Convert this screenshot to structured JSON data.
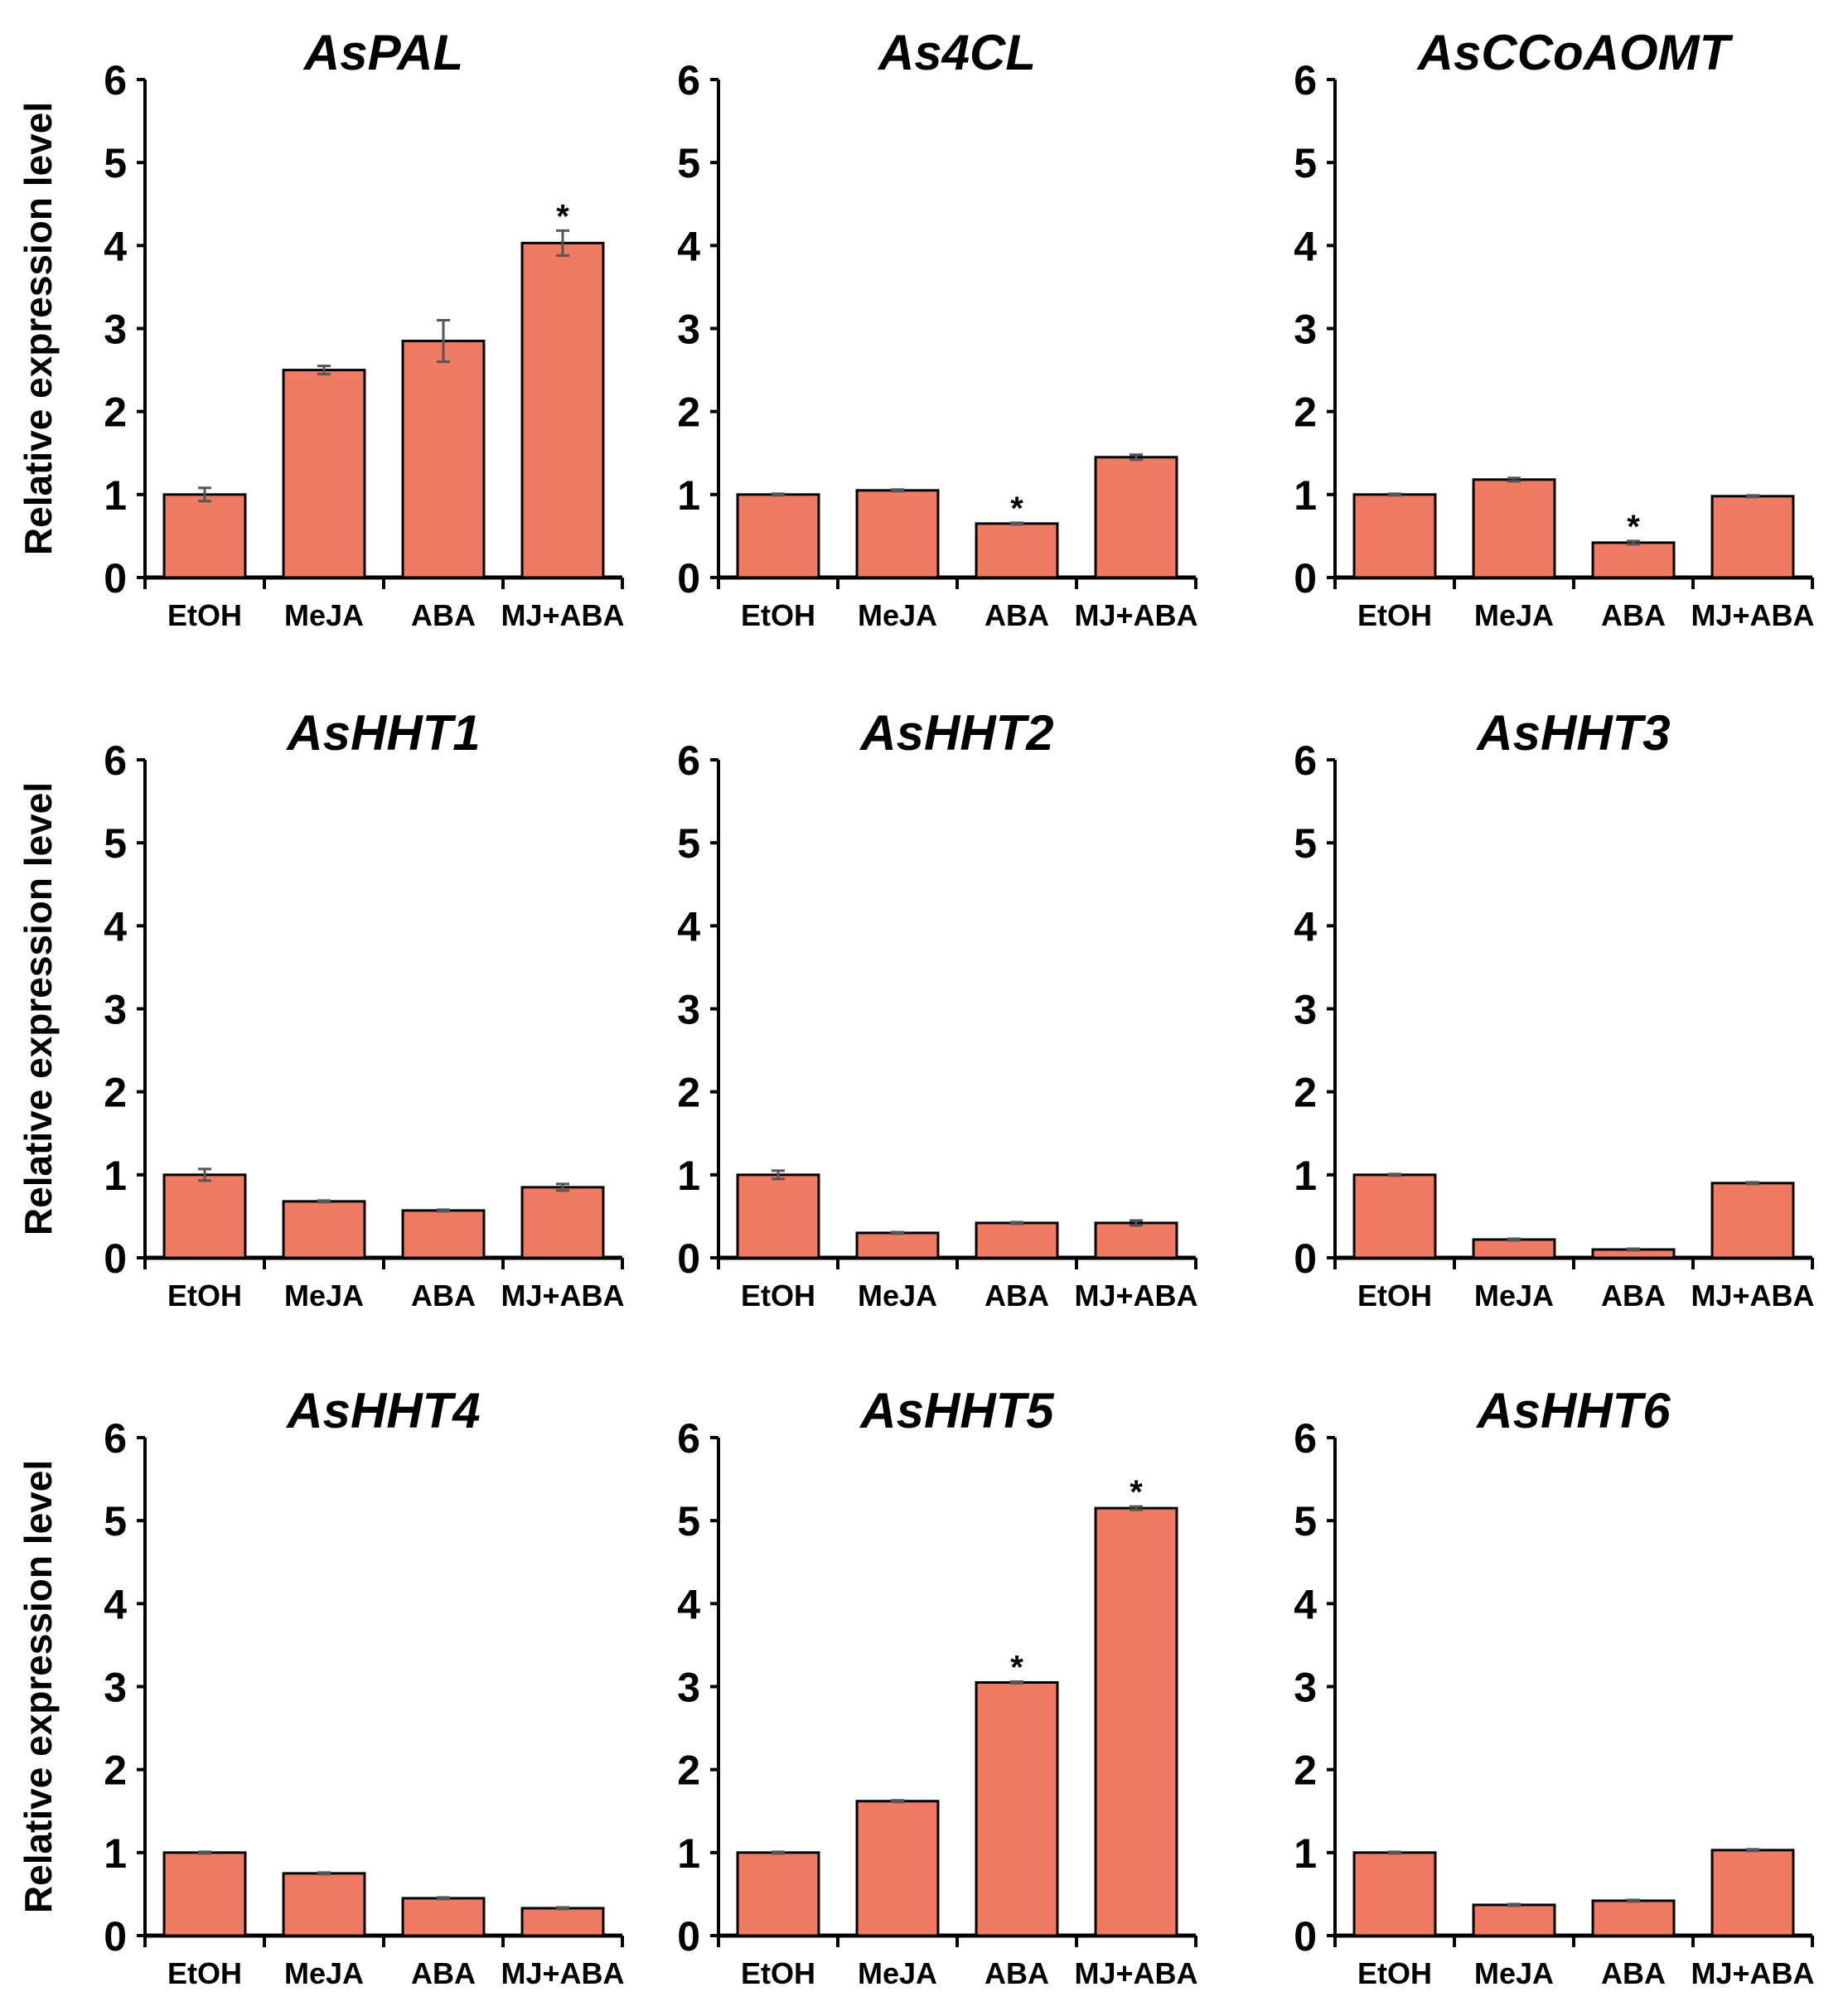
{
  "chart_data": [
    {
      "type": "bar",
      "title": "AsPAL",
      "ylabel": "Relative expression level",
      "categories": [
        "EtOH",
        "MeJA",
        "ABA",
        "MJ+ABA"
      ],
      "values": [
        1.0,
        2.5,
        2.85,
        4.03
      ],
      "errors": [
        0.08,
        0.05,
        0.25,
        0.15
      ],
      "significant": [
        false,
        false,
        false,
        true
      ],
      "ylim": [
        0,
        6
      ],
      "yticks": [
        "0",
        "1",
        "2",
        "3",
        "4",
        "5",
        "6"
      ]
    },
    {
      "type": "bar",
      "title": "As4CL",
      "ylabel": "",
      "categories": [
        "EtOH",
        "MeJA",
        "ABA",
        "MJ+ABA"
      ],
      "values": [
        1.0,
        1.05,
        0.65,
        1.45
      ],
      "errors": [
        0.01,
        0.01,
        0.01,
        0.03
      ],
      "significant": [
        false,
        false,
        true,
        false
      ],
      "ylim": [
        0,
        6
      ],
      "yticks": [
        "0",
        "1",
        "2",
        "3",
        "4",
        "5",
        "6"
      ]
    },
    {
      "type": "bar",
      "title": "AsCCoAOMT",
      "ylabel": "",
      "categories": [
        "EtOH",
        "MeJA",
        "ABA",
        "MJ+ABA"
      ],
      "values": [
        1.0,
        1.18,
        0.42,
        0.98
      ],
      "errors": [
        0.01,
        0.02,
        0.02,
        0.01
      ],
      "significant": [
        false,
        false,
        true,
        false
      ],
      "ylim": [
        0,
        6
      ],
      "yticks": [
        "0",
        "1",
        "2",
        "3",
        "4",
        "5",
        "6"
      ]
    },
    {
      "type": "bar",
      "title": "AsHHT1",
      "ylabel": "Relative expression level",
      "categories": [
        "EtOH",
        "MeJA",
        "ABA",
        "MJ+ABA"
      ],
      "values": [
        1.0,
        0.68,
        0.57,
        0.85
      ],
      "errors": [
        0.07,
        0.01,
        0.01,
        0.04
      ],
      "significant": [
        false,
        false,
        false,
        false
      ],
      "ylim": [
        0,
        6
      ],
      "yticks": [
        "0",
        "1",
        "2",
        "3",
        "4",
        "5",
        "6"
      ]
    },
    {
      "type": "bar",
      "title": "AsHHT2",
      "ylabel": "",
      "categories": [
        "EtOH",
        "MeJA",
        "ABA",
        "MJ+ABA"
      ],
      "values": [
        1.0,
        0.3,
        0.42,
        0.42
      ],
      "errors": [
        0.05,
        0.01,
        0.01,
        0.03
      ],
      "significant": [
        false,
        false,
        false,
        false
      ],
      "ylim": [
        0,
        6
      ],
      "yticks": [
        "0",
        "1",
        "2",
        "3",
        "4",
        "5",
        "6"
      ]
    },
    {
      "type": "bar",
      "title": "AsHHT3",
      "ylabel": "",
      "categories": [
        "EtOH",
        "MeJA",
        "ABA",
        "MJ+ABA"
      ],
      "values": [
        1.0,
        0.22,
        0.1,
        0.9
      ],
      "errors": [
        0.01,
        0.01,
        0.01,
        0.01
      ],
      "significant": [
        false,
        false,
        false,
        false
      ],
      "ylim": [
        0,
        6
      ],
      "yticks": [
        "0",
        "1",
        "2",
        "3",
        "4",
        "5",
        "6"
      ]
    },
    {
      "type": "bar",
      "title": "AsHHT4",
      "ylabel": "Relative expression level",
      "categories": [
        "EtOH",
        "MeJA",
        "ABA",
        "MJ+ABA"
      ],
      "values": [
        1.0,
        0.75,
        0.45,
        0.33
      ],
      "errors": [
        0.01,
        0.01,
        0.01,
        0.01
      ],
      "significant": [
        false,
        false,
        false,
        false
      ],
      "ylim": [
        0,
        6
      ],
      "yticks": [
        "0",
        "1",
        "2",
        "3",
        "4",
        "5",
        "6"
      ]
    },
    {
      "type": "bar",
      "title": "AsHHT5",
      "ylabel": "",
      "categories": [
        "EtOH",
        "MeJA",
        "ABA",
        "MJ+ABA"
      ],
      "values": [
        1.0,
        1.62,
        3.05,
        5.15
      ],
      "errors": [
        0.01,
        0.01,
        0.01,
        0.02
      ],
      "significant": [
        false,
        false,
        true,
        true
      ],
      "ylim": [
        0,
        6
      ],
      "yticks": [
        "0",
        "1",
        "2",
        "3",
        "4",
        "5",
        "6"
      ]
    },
    {
      "type": "bar",
      "title": "AsHHT6",
      "ylabel": "",
      "categories": [
        "EtOH",
        "MeJA",
        "ABA",
        "MJ+ABA"
      ],
      "values": [
        1.0,
        0.37,
        0.42,
        1.03
      ],
      "errors": [
        0.01,
        0.01,
        0.01,
        0.01
      ],
      "significant": [
        false,
        false,
        false,
        false
      ],
      "ylim": [
        0,
        6
      ],
      "yticks": [
        "0",
        "1",
        "2",
        "3",
        "4",
        "5",
        "6"
      ]
    }
  ],
  "significance_marker": "*",
  "colors": {
    "bar": "#EF7B65",
    "error": "#555555",
    "axis": "#000000"
  }
}
